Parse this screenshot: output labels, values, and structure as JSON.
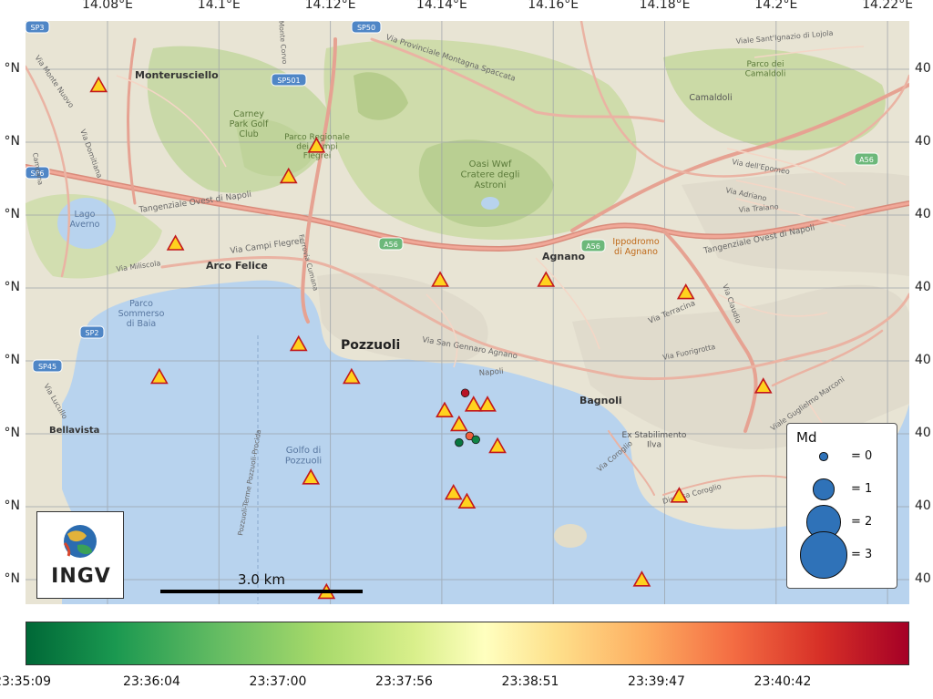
{
  "map": {
    "lon_labels": [
      "14.08°E",
      "14.1°E",
      "14.12°E",
      "14.14°E",
      "14.16°E",
      "14.18°E",
      "14.2°E",
      "14.22°E"
    ],
    "lat_labels_left": [
      "°N",
      "°N",
      "°N",
      "°N",
      "°N",
      "°N",
      "°N",
      "°N"
    ],
    "lat_labels_right": [
      "40",
      "40",
      "40",
      "40",
      "40",
      "40",
      "40",
      "40"
    ],
    "places": {
      "monterusciello": "Monterusciello",
      "carney_park": "Carney\nPark Golf\nClub",
      "parco_campi_flegrei": "Parco Regionale\ndei Campi\nFlegrei",
      "oasi_wwf": "Oasi Wwf\nCratere degli\nAstroni",
      "lago_averno": "Lago\nAverno",
      "arco_felice": "Arco Felice",
      "agnano": "Agnano",
      "ippodromo": "Ippodromo\ndi Agnano",
      "parco_camaldoli": "Parco dei\nCamaldoli",
      "camaldoli": "Camaldoli",
      "parco_sommerso": "Parco\nSommerso\ndi Baia",
      "pozzuoli": "Pozzuoli",
      "bagnoli": "Bagnoli",
      "bellavista": "Bellavista",
      "golfo": "Golfo di\nPozzuoli",
      "ex_stabilimento": "Ex Stabilimento\nIlva"
    },
    "roads": {
      "via_campi_flegrei": "Via Campi Flegrei",
      "via_domitiana": "Via Domitiana",
      "tangenziale_1": "Tangenziale Ovest di Napoli",
      "tangenziale_2": "Tangenziale Ovest di Napoli",
      "via_provinciale": "Via Provinciale Montagna Spaccata",
      "via_san_gennaro": "Via San Gennaro Agnano",
      "via_napoli": "Napoli",
      "via_terracina": "Via Terracina",
      "via_claudio": "Via Claudio",
      "via_epomeo": "Via dell'Epomeo",
      "via_adriano": "Via Adriano",
      "via_traiano": "Via Traiano",
      "via_lojola": "Viale Sant'Ignazio di Lojola",
      "via_marconi": "Viale Guglielmo Marconi",
      "via_coroglio": "Via Coroglio",
      "discesa_coroglio": "Discesa Coroglio",
      "via_lucullo": "Via Lucullo",
      "via_monte_nuovo": "Via Monte Nuovo",
      "via_miliscola": "Via Miliscola",
      "via_monte_corvo": "Monte Corvo",
      "via_fuorigrotta": "Via Fuorigrotta",
      "via_campana": "Campana",
      "via_pozzuoli_procida": "Pozzuoli-Terme Pozzuoli-Procida",
      "via_cumana": "Ferrovia Cumana"
    },
    "shields": [
      "SP3",
      "SP501",
      "SP50",
      "SP6",
      "A56",
      "A56",
      "SP2",
      "SP45",
      "A56"
    ]
  },
  "stations": [
    {
      "lon": 14.0784,
      "lat": 40.8727
    },
    {
      "lon": 14.1175,
      "lat": 40.8644
    },
    {
      "lon": 14.1125,
      "lat": 40.8602
    },
    {
      "lon": 14.0922,
      "lat": 40.851
    },
    {
      "lon": 14.1397,
      "lat": 40.846
    },
    {
      "lon": 14.1587,
      "lat": 40.846
    },
    {
      "lon": 14.1838,
      "lat": 40.8443
    },
    {
      "lon": 14.1143,
      "lat": 40.8372
    },
    {
      "lon": 14.0893,
      "lat": 40.8327
    },
    {
      "lon": 14.1238,
      "lat": 40.8327
    },
    {
      "lon": 14.1405,
      "lat": 40.8281
    },
    {
      "lon": 14.1482,
      "lat": 40.8289
    },
    {
      "lon": 14.1457,
      "lat": 40.8289
    },
    {
      "lon": 14.1431,
      "lat": 40.8262
    },
    {
      "lon": 14.15,
      "lat": 40.8232
    },
    {
      "lon": 14.1977,
      "lat": 40.8314
    },
    {
      "lon": 14.1165,
      "lat": 40.8189
    },
    {
      "lon": 14.1421,
      "lat": 40.8168
    },
    {
      "lon": 14.1445,
      "lat": 40.8156
    },
    {
      "lon": 14.1826,
      "lat": 40.8164
    },
    {
      "lon": 14.0791,
      "lat": 40.804
    },
    {
      "lon": 14.1193,
      "lat": 40.8032
    },
    {
      "lon": 14.1759,
      "lat": 40.8049
    },
    {
      "lon": 14.1436,
      "lat": 40.7994
    },
    {
      "lon": 14.1585,
      "lat": 40.7985
    },
    {
      "lon": 14.1917,
      "lat": 40.7969
    },
    {
      "lon": 14.1345,
      "lat": 40.7931
    },
    {
      "lon": 14.1181,
      "lat": 40.7856
    },
    {
      "lon": 14.1636,
      "lat": 40.7856
    }
  ],
  "events": [
    {
      "lon": 14.1442,
      "lat": 40.8306,
      "md": 0.3,
      "time_frac": 0.96
    },
    {
      "lon": 14.145,
      "lat": 40.8247,
      "md": 0.3,
      "time_frac": 0.82
    },
    {
      "lon": 14.1431,
      "lat": 40.8238,
      "md": 0.3,
      "time_frac": 0.03
    },
    {
      "lon": 14.1461,
      "lat": 40.8242,
      "md": 0.3,
      "time_frac": 0.06
    }
  ],
  "scalebar": {
    "label": "3.0 km"
  },
  "logo": {
    "text": "INGV"
  },
  "legend": {
    "title": "Md",
    "entries": [
      {
        "label": "= 0",
        "md": 0
      },
      {
        "label": "= 1",
        "md": 1
      },
      {
        "label": "= 2",
        "md": 2
      },
      {
        "label": "= 3",
        "md": 3
      }
    ]
  },
  "colorbar": {
    "ticks": [
      "23:35:09",
      "23:36:04",
      "23:37:00",
      "23:37:56",
      "23:38:51",
      "23:39:47",
      "23:40:42"
    ]
  },
  "colors": {
    "sea": "#b8d3ee",
    "land": "#e8e4d4",
    "park": "#c8d8a4",
    "road_major": "#e8a090",
    "road_minor": "#f4d8c8",
    "station_fill": "#ffd21e",
    "station_edge": "#c2181c"
  }
}
